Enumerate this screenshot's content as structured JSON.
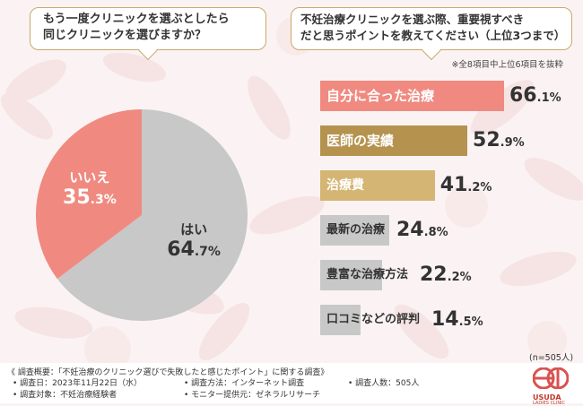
{
  "left_question": {
    "line1": "もう一度クリニックを選ぶとしたら",
    "line2": "同じクリニックを選びますか？"
  },
  "right_question": {
    "line1": "不妊治療クリニックを選ぶ際、重要視すべき",
    "line2": "だと思うポイントを教えてください（上位3つまで）"
  },
  "note": "※全8項目中上位6項目を抜粋",
  "sample_note": "(n=505人)",
  "chart_data": [
    {
      "type": "pie",
      "title": "もう一度クリニックを選ぶとしたら同じクリニックを選びますか？",
      "unit": "%",
      "labels": [
        "はい",
        "いいえ"
      ],
      "values": [
        64.7,
        35.3
      ],
      "value_text": [
        {
          "int": "64",
          "dec": ".7%"
        },
        {
          "int": "35",
          "dec": ".3%"
        }
      ],
      "colors": [
        "#c8c8c8",
        "#f08a80"
      ],
      "label_colors": [
        "#333333",
        "#ffffff"
      ]
    },
    {
      "type": "bar",
      "orientation": "horizontal",
      "title": "不妊治療クリニックを選ぶ際、重要視すべきだと思うポイントを教えてください（上位3つまで）",
      "unit": "%",
      "xlim": [
        0,
        100
      ],
      "categories": [
        "自分に合った治療",
        "医師の実績",
        "治療費",
        "最新の治療",
        "豊富な治療方法",
        "口コミなどの評判"
      ],
      "values": [
        66.1,
        52.9,
        41.2,
        24.8,
        22.2,
        14.5
      ],
      "value_text": [
        {
          "int": "66",
          "dec": ".1%"
        },
        {
          "int": "52",
          "dec": ".9%"
        },
        {
          "int": "41",
          "dec": ".2%"
        },
        {
          "int": "24",
          "dec": ".8%"
        },
        {
          "int": "22",
          "dec": ".2%"
        },
        {
          "int": "14",
          "dec": ".5%"
        }
      ],
      "colors": [
        "#f08a80",
        "#b5934f",
        "#d4b574",
        "#c8c8c8",
        "#c8c8c8",
        "#c8c8c8"
      ],
      "label_colors": [
        "#ffffff",
        "#ffffff",
        "#ffffff",
        "#333333",
        "#333333",
        "#333333"
      ]
    }
  ],
  "footer": {
    "summary": "《 調査概要：「不妊治療のクリニック選びで失敗したと感じたポイント」に関する調査》",
    "date": "• 調査日：2023年11月22日（水）",
    "target": "• 調査対象：不妊治療経験者",
    "method": "• 調査方法：インターネット調査",
    "provider": "• モニター提供元：ゼネラルリサーチ",
    "count": "• 調査人数：505人"
  },
  "brand": {
    "name": "USUDA",
    "tagline": "LADIES CLINIC"
  }
}
